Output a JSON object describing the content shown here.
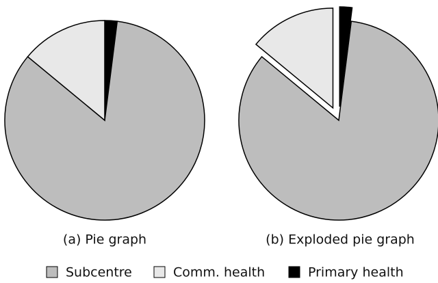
{
  "chart_data": [
    {
      "type": "pie",
      "title": "(a) Pie graph",
      "categories": [
        "Subcentre",
        "Comm. health",
        "Primary health"
      ],
      "values": [
        84,
        14,
        2
      ],
      "colors": [
        "#bdbdbd",
        "#e8e8e8",
        "#000000"
      ]
    },
    {
      "type": "pie",
      "title": "(b) Exploded pie graph",
      "categories": [
        "Subcentre",
        "Comm. health",
        "Primary health"
      ],
      "values": [
        84,
        14,
        2
      ],
      "colors": [
        "#bdbdbd",
        "#e8e8e8",
        "#000000"
      ],
      "explode": [
        false,
        true,
        true
      ]
    }
  ]
}
